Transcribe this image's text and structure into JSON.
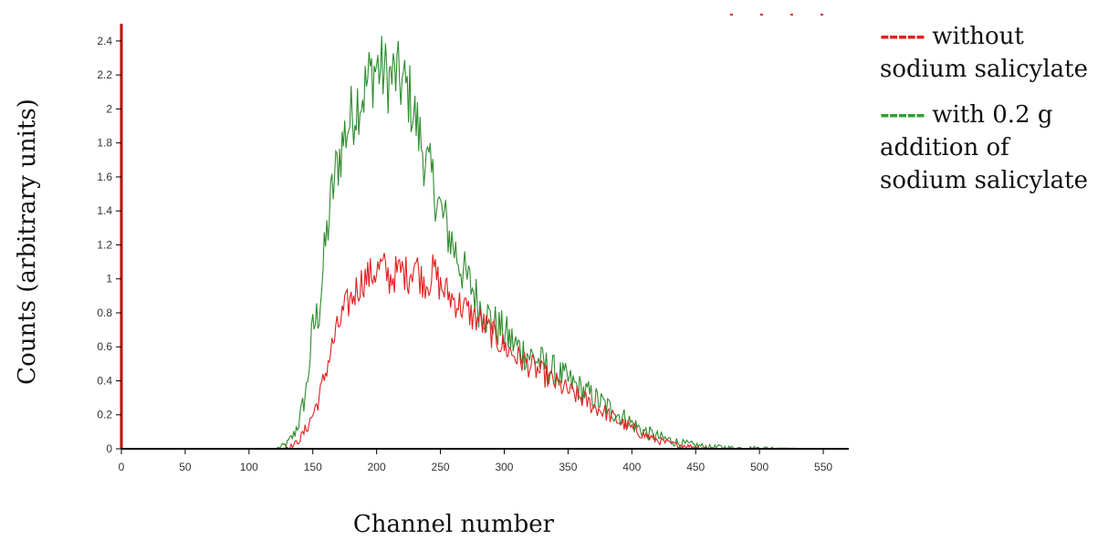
{
  "chart_data": {
    "type": "line",
    "title": "",
    "xlabel": "Channel number",
    "ylabel": "Counts (arbitrary units)",
    "xlim": [
      0,
      570
    ],
    "ylim": [
      0,
      2.48
    ],
    "x_ticks": [
      0,
      50,
      100,
      150,
      200,
      250,
      300,
      350,
      400,
      450,
      500,
      550
    ],
    "y_ticks": [
      "0",
      "0.2",
      "0.4",
      "0.6",
      "0.8",
      "1",
      "1.2",
      "1.4",
      "1.6",
      "1.8",
      "2",
      "2.2",
      "2.4"
    ],
    "grid": false,
    "legend_position": "right",
    "series": [
      {
        "name": "without sodium salicylate",
        "legend_dash": "-----",
        "legend_lines": [
          "without",
          "sodium salicylate"
        ],
        "color": "#e02020",
        "x": [
          0,
          125,
          135,
          140,
          145,
          150,
          155,
          160,
          165,
          170,
          175,
          180,
          185,
          190,
          195,
          200,
          205,
          210,
          215,
          220,
          225,
          230,
          235,
          240,
          245,
          250,
          255,
          260,
          265,
          270,
          275,
          280,
          285,
          290,
          295,
          300,
          310,
          320,
          330,
          340,
          350,
          360,
          370,
          380,
          390,
          400,
          410,
          420,
          430,
          440,
          450,
          460,
          470,
          480,
          500,
          570
        ],
        "y": [
          0,
          0,
          0.02,
          0.06,
          0.12,
          0.2,
          0.3,
          0.45,
          0.6,
          0.72,
          0.82,
          0.88,
          0.95,
          1.0,
          1.02,
          1.05,
          1.07,
          1.0,
          1.03,
          1.05,
          1.02,
          1.1,
          1.0,
          0.98,
          1.05,
          0.95,
          0.92,
          0.88,
          0.85,
          0.82,
          0.78,
          0.76,
          0.72,
          0.68,
          0.64,
          0.6,
          0.54,
          0.49,
          0.44,
          0.39,
          0.34,
          0.3,
          0.25,
          0.21,
          0.16,
          0.12,
          0.08,
          0.05,
          0.03,
          0.02,
          0.01,
          0.005,
          0,
          0,
          0,
          0
        ]
      },
      {
        "name": "with 0.2 g addition of sodium salicylate",
        "legend_dash": "-----",
        "legend_lines": [
          "with 0.2 g",
          "addition of",
          "sodium salicylate"
        ],
        "color": "#2e8b2e",
        "x": [
          0,
          120,
          125,
          130,
          135,
          140,
          145,
          150,
          155,
          160,
          165,
          170,
          175,
          180,
          185,
          190,
          195,
          200,
          205,
          210,
          215,
          220,
          225,
          230,
          235,
          240,
          245,
          250,
          255,
          260,
          265,
          270,
          275,
          280,
          285,
          290,
          300,
          310,
          320,
          330,
          340,
          350,
          360,
          370,
          380,
          390,
          400,
          410,
          420,
          430,
          440,
          450,
          460,
          470,
          480,
          490,
          500,
          570
        ],
        "y": [
          0,
          0,
          0.01,
          0.03,
          0.08,
          0.18,
          0.35,
          0.7,
          0.82,
          1.2,
          1.5,
          1.7,
          1.85,
          1.95,
          2.05,
          2.1,
          2.2,
          2.25,
          2.22,
          2.18,
          2.2,
          2.15,
          2.1,
          1.95,
          1.8,
          1.65,
          1.55,
          1.4,
          1.3,
          1.2,
          1.1,
          1.0,
          0.95,
          0.85,
          0.8,
          0.75,
          0.68,
          0.6,
          0.55,
          0.5,
          0.45,
          0.4,
          0.35,
          0.3,
          0.25,
          0.2,
          0.15,
          0.1,
          0.07,
          0.05,
          0.03,
          0.02,
          0.01,
          0.01,
          0.005,
          0.005,
          0.005,
          0
        ]
      }
    ]
  }
}
